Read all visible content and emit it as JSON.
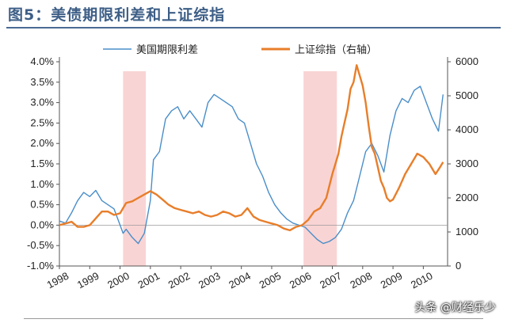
{
  "title": "图5：美债期限利差和上证综指",
  "watermark": "头条 @财经乐少",
  "colors": {
    "spread": "#4a8ec9",
    "index": "#e87e2a",
    "shade": "#f7c6c6",
    "title": "#3d5e86"
  },
  "chart_data": {
    "type": "line",
    "title": "图5：美债期限利差和上证综指",
    "x_ticks": [
      "1998",
      "1999",
      "2000",
      "2001",
      "2002",
      "2003",
      "2004",
      "2005",
      "2006",
      "2007",
      "2008",
      "2009",
      "2010"
    ],
    "x_range": [
      1998.0,
      2010.8
    ],
    "y_left_ticks": [
      "4.0%",
      "3.5%",
      "3.0%",
      "2.5%",
      "2.0%",
      "1.5%",
      "1.0%",
      "0.5%",
      "0.0%",
      "-0.5%",
      "-1.0%"
    ],
    "y_left_range": [
      -1.0,
      4.0
    ],
    "y_right_ticks": [
      "6000",
      "5000",
      "4000",
      "3000",
      "2000",
      "1000",
      "0"
    ],
    "y_right_range": [
      0,
      6000
    ],
    "legend_placement": "top",
    "shaded_periods": [
      [
        2000.1,
        2000.85
      ],
      [
        2006.05,
        2007.15
      ]
    ],
    "series": [
      {
        "name": "美国期限利差",
        "axis": "left",
        "x": [
          1998.0,
          1998.2,
          1998.4,
          1998.6,
          1998.8,
          1999.0,
          1999.2,
          1999.4,
          1999.6,
          1999.8,
          2000.0,
          2000.1,
          2000.2,
          2000.4,
          2000.6,
          2000.8,
          2000.9,
          2001.0,
          2001.1,
          2001.3,
          2001.5,
          2001.7,
          2001.9,
          2002.1,
          2002.3,
          2002.5,
          2002.7,
          2002.9,
          2003.1,
          2003.3,
          2003.5,
          2003.7,
          2003.9,
          2004.1,
          2004.3,
          2004.5,
          2004.7,
          2004.9,
          2005.1,
          2005.3,
          2005.5,
          2005.7,
          2005.9,
          2006.1,
          2006.3,
          2006.5,
          2006.7,
          2006.9,
          2007.1,
          2007.3,
          2007.5,
          2007.7,
          2007.9,
          2008.1,
          2008.3,
          2008.5,
          2008.7,
          2008.9,
          2009.1,
          2009.3,
          2009.5,
          2009.7,
          2009.9,
          2010.1,
          2010.3,
          2010.5,
          2010.65
        ],
        "values": [
          0.1,
          0.05,
          0.3,
          0.6,
          0.8,
          0.7,
          0.85,
          0.6,
          0.5,
          0.4,
          0.0,
          -0.2,
          -0.1,
          -0.3,
          -0.45,
          -0.2,
          0.2,
          0.6,
          1.6,
          1.8,
          2.6,
          2.8,
          2.9,
          2.6,
          2.8,
          2.6,
          2.4,
          3.0,
          3.2,
          3.1,
          3.0,
          2.9,
          2.6,
          2.5,
          2.0,
          1.5,
          1.2,
          0.8,
          0.5,
          0.3,
          0.15,
          0.05,
          0.0,
          -0.05,
          -0.2,
          -0.35,
          -0.45,
          -0.4,
          -0.3,
          -0.1,
          0.3,
          0.6,
          1.2,
          1.8,
          2.0,
          1.7,
          1.3,
          2.2,
          2.8,
          3.1,
          3.0,
          3.3,
          3.4,
          3.0,
          2.6,
          2.3,
          3.2
        ]
      },
      {
        "name": "上证综指（右轴）",
        "axis": "right",
        "x": [
          1998.0,
          1998.2,
          1998.4,
          1998.6,
          1998.8,
          1999.0,
          1999.2,
          1999.4,
          1999.6,
          1999.8,
          2000.0,
          2000.2,
          2000.4,
          2000.6,
          2000.8,
          2001.0,
          2001.2,
          2001.4,
          2001.6,
          2001.8,
          2002.0,
          2002.2,
          2002.4,
          2002.6,
          2002.8,
          2003.0,
          2003.2,
          2003.4,
          2003.6,
          2003.8,
          2004.0,
          2004.2,
          2004.4,
          2004.6,
          2004.8,
          2005.0,
          2005.2,
          2005.4,
          2005.6,
          2005.8,
          2006.0,
          2006.2,
          2006.4,
          2006.6,
          2006.8,
          2007.0,
          2007.1,
          2007.2,
          2007.3,
          2007.4,
          2007.5,
          2007.6,
          2007.7,
          2007.8,
          2007.9,
          2008.0,
          2008.1,
          2008.2,
          2008.3,
          2008.4,
          2008.5,
          2008.6,
          2008.7,
          2008.8,
          2008.9,
          2009.0,
          2009.2,
          2009.4,
          2009.6,
          2009.8,
          2010.0,
          2010.2,
          2010.4,
          2010.55,
          2010.65
        ],
        "values": [
          1200,
          1250,
          1300,
          1150,
          1150,
          1200,
          1400,
          1600,
          1600,
          1500,
          1550,
          1850,
          1900,
          2000,
          2100,
          2200,
          2100,
          1950,
          1800,
          1700,
          1650,
          1600,
          1550,
          1600,
          1500,
          1450,
          1500,
          1600,
          1550,
          1450,
          1500,
          1700,
          1450,
          1350,
          1300,
          1250,
          1200,
          1100,
          1050,
          1150,
          1200,
          1350,
          1600,
          1700,
          2000,
          2700,
          3000,
          3300,
          3800,
          4200,
          4600,
          5200,
          5400,
          5900,
          5600,
          5300,
          4800,
          4100,
          3500,
          3300,
          2900,
          2500,
          2300,
          2000,
          1900,
          1950,
          2300,
          2700,
          3000,
          3300,
          3200,
          3000,
          2700,
          2900,
          3050
        ]
      }
    ]
  }
}
